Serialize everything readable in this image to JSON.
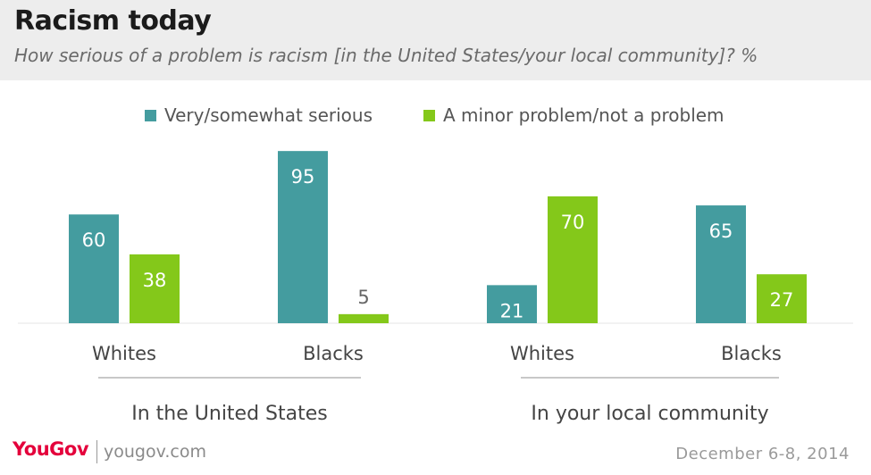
{
  "chart_data": {
    "type": "bar",
    "title": "Racism today",
    "subtitle": "How serious of a problem is racism [in the United States/your local community]? %",
    "groups": [
      {
        "label": "In the United States",
        "categories": [
          "Whites",
          "Blacks"
        ]
      },
      {
        "label": "In your local community",
        "categories": [
          "Whites",
          "Blacks"
        ]
      }
    ],
    "categories": [
      "Whites",
      "Blacks",
      "Whites",
      "Blacks"
    ],
    "series": [
      {
        "name": "Very/somewhat serious",
        "color": "#449c9f",
        "values": [
          60,
          95,
          21,
          65
        ]
      },
      {
        "name": "A minor problem/not a problem",
        "color": "#84c81a",
        "values": [
          38,
          5,
          70,
          27
        ]
      }
    ],
    "ylim": [
      0,
      100
    ],
    "grid": false,
    "legend": "top-center",
    "label_colors": {
      "inside": "#ffffff",
      "outside": "#666666"
    }
  },
  "footer": {
    "brand": "YouGov",
    "url": "yougov.com",
    "date": "December 6-8, 2014"
  },
  "colors": {
    "brand": "#e4003b",
    "header_bg": "#ededed"
  }
}
